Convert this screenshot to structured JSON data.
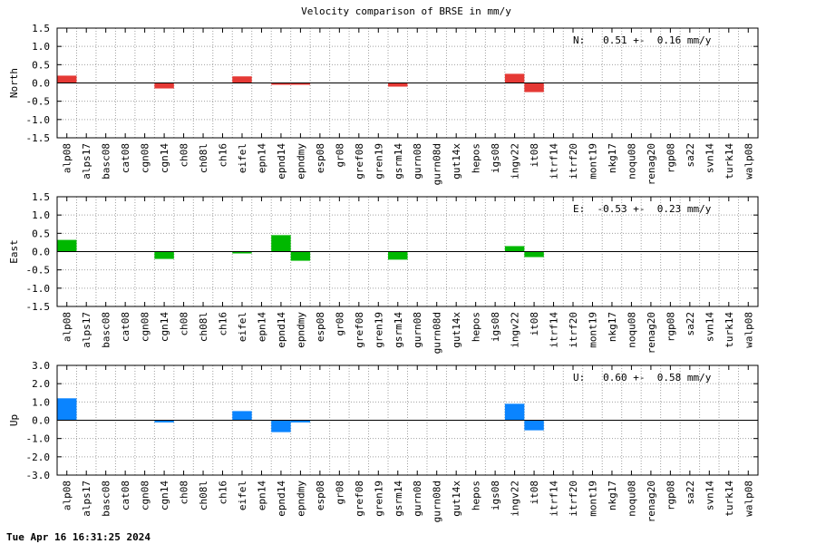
{
  "chart_data": {
    "type": "bar",
    "title": "Velocity comparison of BRSE in mm/y",
    "categories": [
      "alp08",
      "alps17",
      "basc08",
      "cat08",
      "cgn08",
      "cgn14",
      "ch08",
      "ch08l",
      "ch16",
      "eifel",
      "epn14",
      "epnd14",
      "epndmy",
      "esp08",
      "gr08",
      "gref08",
      "gren19",
      "gsrm14",
      "gurn08",
      "gurn08d",
      "gut14x",
      "hepos",
      "igs08",
      "ingv22",
      "it08",
      "itrf14",
      "itrf20",
      "mont19",
      "nkg17",
      "noqu08",
      "renag20",
      "rgp08",
      "sa22",
      "svn14",
      "turk14",
      "walp08"
    ],
    "grid": true,
    "panels": [
      {
        "ylabel": "North",
        "ylim": [
          -1.5,
          1.5
        ],
        "yticks": [
          "1.5",
          "1.0",
          "0.5",
          "0.0",
          "-0.5",
          "-1.0",
          "-1.5"
        ],
        "ytick_values": [
          1.5,
          1.0,
          0.5,
          0.0,
          -0.5,
          -1.0,
          -1.5
        ],
        "annotation": "N:   0.51 +-  0.16 mm/y",
        "color": "#e53935",
        "values": [
          0.2,
          0,
          0,
          0,
          0,
          -0.15,
          0,
          0,
          0,
          0.18,
          0,
          -0.05,
          -0.05,
          0,
          0,
          0,
          0,
          -0.1,
          0,
          0,
          0,
          0,
          0,
          0.25,
          -0.25,
          0,
          0,
          0,
          0,
          0,
          0,
          0,
          0,
          0,
          0,
          0
        ]
      },
      {
        "ylabel": "East",
        "ylim": [
          -1.5,
          1.5
        ],
        "yticks": [
          "1.5",
          "1.0",
          "0.5",
          "0.0",
          "-0.5",
          "-1.0",
          "-1.5"
        ],
        "ytick_values": [
          1.5,
          1.0,
          0.5,
          0.0,
          -0.5,
          -1.0,
          -1.5
        ],
        "annotation": "E:  -0.53 +-  0.23 mm/y",
        "color": "#00b800",
        "values": [
          0.32,
          0,
          0,
          0,
          0,
          -0.2,
          0,
          0,
          0,
          -0.05,
          0,
          0.45,
          -0.25,
          0,
          0,
          0,
          0,
          -0.22,
          0,
          0,
          0,
          0,
          0,
          0.15,
          -0.15,
          0,
          0,
          0,
          0,
          0,
          0,
          0,
          0,
          0,
          0,
          0
        ]
      },
      {
        "ylabel": "Up",
        "ylim": [
          -3.0,
          3.0
        ],
        "yticks": [
          "3.0",
          "2.0",
          "1.0",
          "0.0",
          "-1.0",
          "-2.0",
          "-3.0"
        ],
        "ytick_values": [
          3.0,
          2.0,
          1.0,
          0.0,
          -1.0,
          -2.0,
          -3.0
        ],
        "annotation": "U:   0.60 +-  0.58 mm/y",
        "color": "#0a84ff",
        "values": [
          1.2,
          0,
          0,
          0,
          0,
          -0.12,
          0,
          0,
          0,
          0.5,
          0,
          -0.65,
          -0.12,
          0,
          0,
          0,
          0,
          0,
          0,
          0,
          0,
          0,
          0,
          0.9,
          -0.55,
          0,
          0,
          0,
          0,
          0,
          0,
          0,
          0,
          0,
          0,
          0
        ]
      }
    ]
  },
  "footer": {
    "timestamp": "Tue Apr 16 16:31:25 2024"
  }
}
